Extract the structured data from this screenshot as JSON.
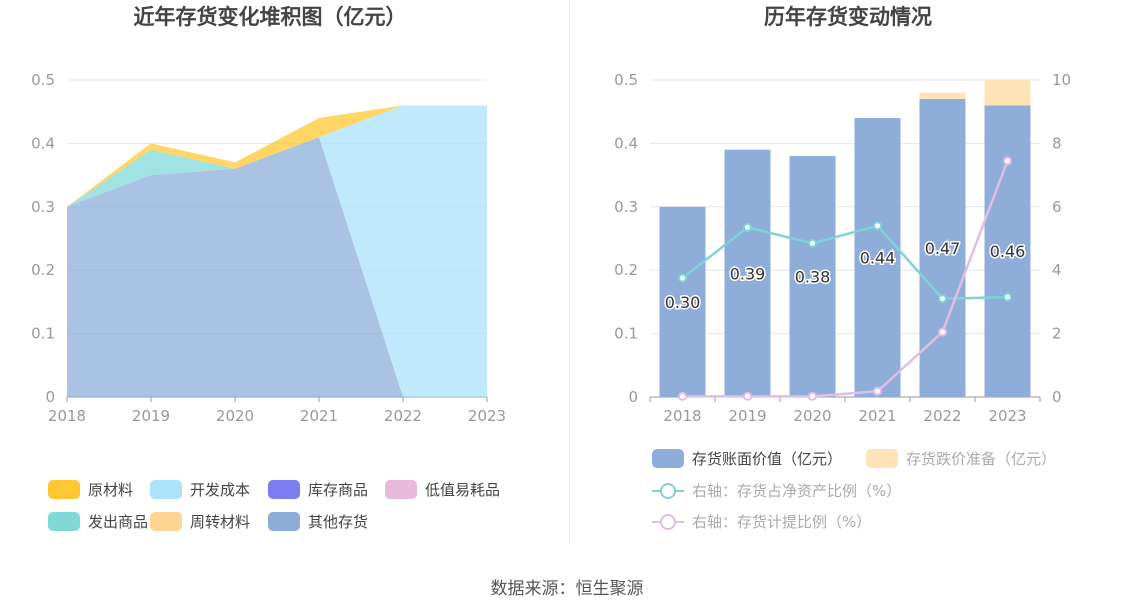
{
  "left_chart": {
    "title": "近年存货变化堆积图（亿元）",
    "chart_data": {
      "type": "area",
      "stacked": true,
      "title": "近年存货变化堆积图（亿元）",
      "categories": [
        "2018",
        "2019",
        "2020",
        "2021",
        "2022",
        "2023"
      ],
      "ylim": [
        0,
        0.5
      ],
      "yticks": [
        "0",
        "0.1",
        "0.2",
        "0.3",
        "0.4",
        "0.5"
      ],
      "grid": true,
      "legend_position": "bottom",
      "series": [
        {
          "name": "原材料",
          "color": "#ffc833",
          "values": [
            0,
            0.01,
            0.01,
            0.03,
            0,
            0
          ]
        },
        {
          "name": "开发成本",
          "color": "#abe3fb",
          "values": [
            0,
            0,
            0,
            0,
            0.46,
            0.46
          ]
        },
        {
          "name": "库存商品",
          "color": "#7c7cf0",
          "values": [
            0,
            0,
            0,
            0,
            0,
            0
          ]
        },
        {
          "name": "低值易耗品",
          "color": "#e8b9db",
          "values": [
            0,
            0,
            0,
            0,
            0,
            0
          ]
        },
        {
          "name": "发出商品",
          "color": "#82d8d8",
          "values": [
            0,
            0.04,
            0,
            0,
            0,
            0
          ]
        },
        {
          "name": "周转材料",
          "color": "#ffd593",
          "values": [
            0,
            0,
            0,
            0,
            0,
            0
          ]
        },
        {
          "name": "其他存货",
          "color": "#8eadd9",
          "values": [
            0.3,
            0.35,
            0.36,
            0.41,
            0,
            0
          ]
        }
      ]
    }
  },
  "right_chart": {
    "title": "历年存货变动情况",
    "chart_data": {
      "type": "bar",
      "title": "历年存货变动情况",
      "categories": [
        "2018",
        "2019",
        "2020",
        "2021",
        "2022",
        "2023"
      ],
      "ylim": [
        0,
        0.5
      ],
      "yticks": [
        "0",
        "0.1",
        "0.2",
        "0.3",
        "0.4",
        "0.5"
      ],
      "y2lim": [
        0,
        10
      ],
      "y2ticks": [
        "0",
        "2",
        "4",
        "6",
        "8",
        "10"
      ],
      "grid": true,
      "legend_position": "bottom",
      "series": [
        {
          "name": "存货账面价值（亿元）",
          "type": "bar",
          "stack": "inv",
          "color": "#8eadd9",
          "values": [
            0.3,
            0.39,
            0.38,
            0.44,
            0.47,
            0.46
          ],
          "labels": [
            "0.30",
            "0.39",
            "0.38",
            "0.44",
            "0.47",
            "0.46"
          ]
        },
        {
          "name": "存货跌价准备（亿元）",
          "type": "bar",
          "stack": "inv",
          "color": "#ffe3b8",
          "values": [
            0,
            0,
            0,
            0,
            0.01,
            0.04
          ]
        },
        {
          "name": "右轴：存货占净资产比例（%）",
          "type": "line",
          "axis": "right",
          "color": "#7fd3d8",
          "values": [
            3.75,
            5.35,
            4.85,
            5.4,
            3.1,
            3.15
          ]
        },
        {
          "name": "右轴：存货计提比例（%）",
          "type": "line",
          "axis": "right",
          "color": "#e2bde3",
          "values": [
            0.02,
            0.02,
            0.02,
            0.18,
            2.05,
            7.45
          ]
        }
      ]
    }
  },
  "source": "数据来源：恒生聚源"
}
